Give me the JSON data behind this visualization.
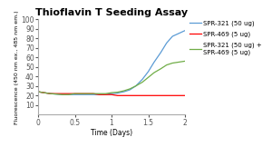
{
  "title": "Thioflavin T Seeding Assay",
  "xlabel": "Time (Days)",
  "ylabel": "Fluorescence (450 nm ex., 485 nm em.)",
  "xlim": [
    0,
    2
  ],
  "ylim": [
    0,
    100
  ],
  "yticks": [
    10,
    20,
    30,
    40,
    50,
    60,
    70,
    80,
    90,
    100
  ],
  "xticks": [
    0,
    0.5,
    1.0,
    1.5,
    2.0
  ],
  "xtick_labels": [
    "0",
    "0.5",
    "1",
    "1.5",
    "2"
  ],
  "series": [
    {
      "label": "SPR-321 (50 ug)",
      "color": "#5B9BD5",
      "x": [
        0,
        0.08,
        0.17,
        0.25,
        0.33,
        0.42,
        0.5,
        0.58,
        0.67,
        0.75,
        0.83,
        0.92,
        1.0,
        1.08,
        1.17,
        1.25,
        1.33,
        1.42,
        1.5,
        1.58,
        1.67,
        1.75,
        1.83,
        2.0
      ],
      "y": [
        24,
        23,
        22,
        21.5,
        21,
        21,
        21,
        21,
        21,
        21,
        21,
        21,
        22,
        22.5,
        24,
        26,
        30,
        37,
        45,
        55,
        65,
        75,
        82,
        88
      ]
    },
    {
      "label": "SPR-469 (5 ug)",
      "color": "#FF0000",
      "x": [
        0,
        0.08,
        0.17,
        0.25,
        0.33,
        0.42,
        0.5,
        0.58,
        0.67,
        0.75,
        0.83,
        0.92,
        1.0,
        1.08,
        1.17,
        1.25,
        1.33,
        1.42,
        1.5,
        1.58,
        1.67,
        1.75,
        1.83,
        2.0
      ],
      "y": [
        24,
        23,
        22,
        22,
        22,
        22,
        22,
        22,
        22,
        22,
        21,
        21,
        21,
        20,
        20,
        20,
        20,
        20,
        20,
        20,
        20,
        20,
        20,
        20
      ]
    },
    {
      "label": "SPR-321 (50 ug) +\nSPR-469 (5 ug)",
      "color": "#70AD47",
      "x": [
        0,
        0.08,
        0.17,
        0.25,
        0.33,
        0.42,
        0.5,
        0.58,
        0.67,
        0.75,
        0.83,
        0.92,
        1.0,
        1.08,
        1.17,
        1.25,
        1.33,
        1.42,
        1.5,
        1.58,
        1.67,
        1.75,
        1.83,
        2.0
      ],
      "y": [
        24,
        23,
        22,
        21.5,
        21,
        21,
        22,
        22,
        22,
        22,
        22,
        22,
        23,
        23.5,
        25,
        27,
        30,
        34,
        39,
        44,
        48,
        52,
        54,
        56
      ]
    }
  ],
  "title_fontsize": 8,
  "label_fontsize": 5.5,
  "tick_fontsize": 5.5,
  "legend_fontsize": 5,
  "background_color": "#FFFFFF"
}
